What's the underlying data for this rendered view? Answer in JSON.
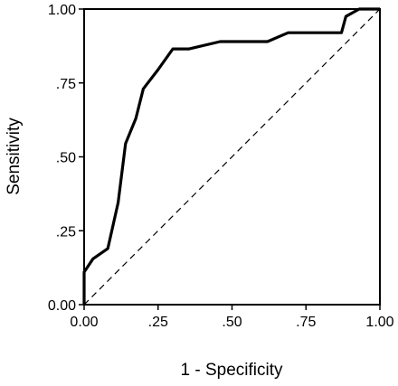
{
  "chart_data": {
    "type": "line",
    "title": "",
    "xlabel": "1 - Specificity",
    "ylabel": "Sensitivity",
    "xlim": [
      0,
      1
    ],
    "ylim": [
      0,
      1
    ],
    "x_ticks": [
      0,
      0.25,
      0.5,
      0.75,
      1.0
    ],
    "x_tick_labels": [
      "0.00",
      ".25",
      ".50",
      ".75",
      "1.00"
    ],
    "y_ticks": [
      0,
      0.25,
      0.5,
      0.75,
      1.0
    ],
    "y_tick_labels": [
      "0.00",
      ".25",
      ".50",
      ".75",
      "1.00"
    ],
    "grid": false,
    "legend": "none",
    "series": [
      {
        "style": "solid",
        "color": "#000000",
        "x": [
          0,
          0,
          0.03,
          0.08,
          0.115,
          0.14,
          0.175,
          0.2,
          0.25,
          0.3,
          0.355,
          0.46,
          0.62,
          0.69,
          0.87,
          0.885,
          0.93,
          1.0
        ],
        "y": [
          0,
          0.11,
          0.155,
          0.19,
          0.345,
          0.545,
          0.63,
          0.73,
          0.795,
          0.865,
          0.865,
          0.89,
          0.89,
          0.92,
          0.92,
          0.975,
          1.0,
          1.0
        ]
      },
      {
        "style": "dashed",
        "color": "#000000",
        "x": [
          0,
          1
        ],
        "y": [
          0,
          1
        ]
      }
    ]
  }
}
